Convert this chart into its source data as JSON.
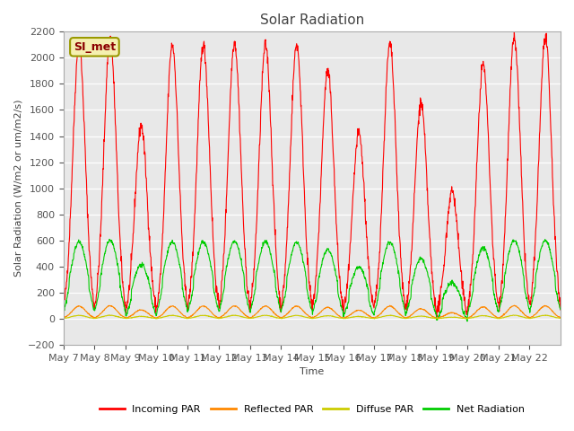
{
  "title": "Solar Radiation",
  "ylabel": "Solar Radiation (W/m2 or um/m2/s)",
  "xlabel": "Time",
  "ylim": [
    -200,
    2200
  ],
  "yticks": [
    -200,
    0,
    200,
    400,
    600,
    800,
    1000,
    1200,
    1400,
    1600,
    1800,
    2000,
    2200
  ],
  "x_tick_labels": [
    "May 7",
    "May 8",
    "May 9",
    "May 10",
    "May 11",
    "May 12",
    "May 13",
    "May 14",
    "May 15",
    "May 16",
    "May 17",
    "May 18",
    "May 19",
    "May 20",
    "May 21",
    "May 22"
  ],
  "station_label": "SI_met",
  "bg_color": "#e8e8e8",
  "line_colors": {
    "incoming": "#ff0000",
    "reflected": "#ff8800",
    "diffuse": "#cccc00",
    "net": "#00cc00"
  },
  "legend_labels": [
    "Incoming PAR",
    "Reflected PAR",
    "Diffuse PAR",
    "Net Radiation"
  ],
  "incoming_peaks": [
    2100,
    2150,
    1480,
    2100,
    2100,
    2120,
    2100,
    2100,
    1900,
    1420,
    2100,
    1650,
    980,
    1950,
    2150,
    2150
  ]
}
